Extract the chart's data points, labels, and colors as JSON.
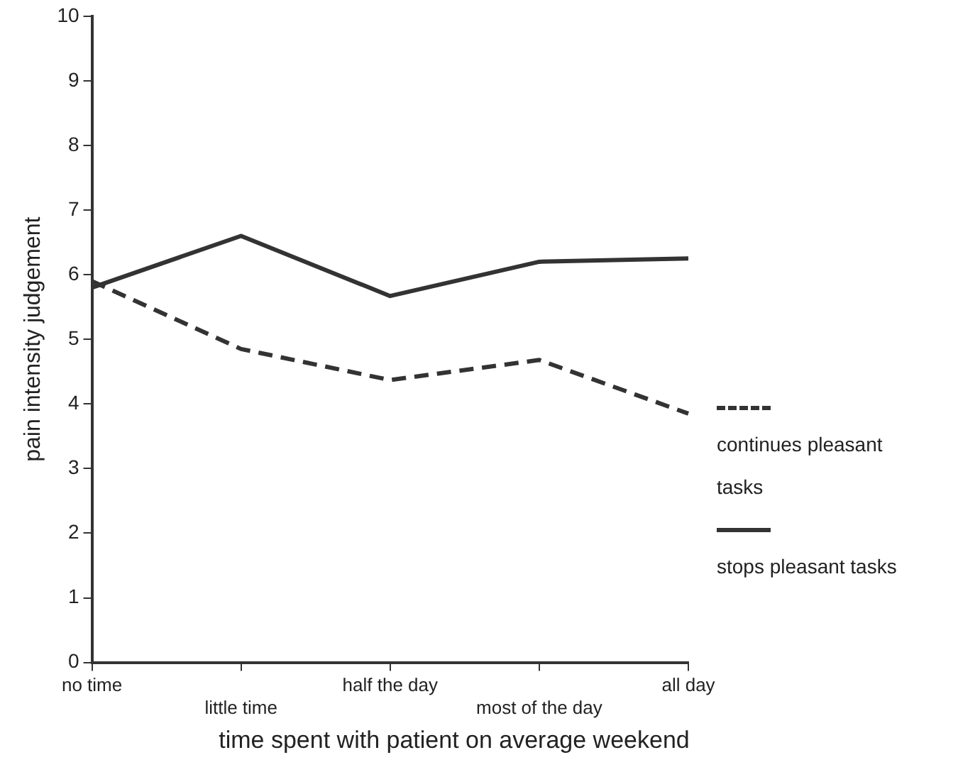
{
  "chart_data": {
    "type": "line",
    "xlabel": "time spent with patient on average weekend",
    "ylabel": "pain intensity judgement",
    "categories": [
      "no time",
      "little time",
      "half the day",
      "most of the day",
      "all day"
    ],
    "series": [
      {
        "name": "continues pleasant tasks",
        "color": "#333333",
        "line_style": "dashed",
        "values": [
          5.9,
          4.85,
          4.37,
          4.68,
          3.85
        ]
      },
      {
        "name": "stops pleasant tasks",
        "color": "#333333",
        "line_style": "solid",
        "values": [
          5.8,
          6.6,
          5.67,
          6.2,
          6.25
        ]
      }
    ],
    "ylim": [
      0,
      10
    ],
    "yticks": [
      0,
      1,
      2,
      3,
      4,
      5,
      6,
      7,
      8,
      9,
      10
    ],
    "grid": false,
    "legend": "right",
    "marker": "none"
  }
}
